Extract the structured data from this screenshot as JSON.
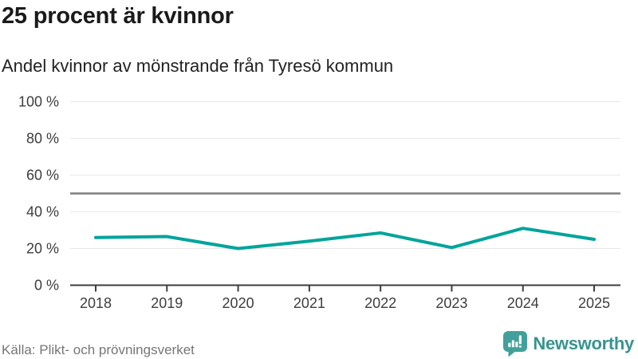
{
  "chart_data": {
    "type": "line",
    "title": "25 procent är kvinnor",
    "subtitle": "Andel kvinnor av mönstrande från Tyresö kommun",
    "x": [
      2018,
      2019,
      2020,
      2021,
      2022,
      2023,
      2024,
      2025
    ],
    "series": [
      {
        "name": "Andel kvinnor (%)",
        "values": [
          26,
          26.5,
          20,
          24,
          28.5,
          20.5,
          31,
          25
        ]
      }
    ],
    "reference_line": {
      "value": 50
    },
    "ylim": [
      0,
      100
    ],
    "yticks": [
      0,
      20,
      40,
      60,
      80,
      100
    ],
    "ytick_labels": [
      "0 %",
      "20 %",
      "40 %",
      "60 %",
      "80 %",
      "100 %"
    ],
    "grid": true,
    "legend": false
  },
  "footer": {
    "source": "Källa: Plikt- och prövningsverket",
    "brand": "Newsworthy"
  },
  "icons": {
    "brand_icon": "bar-chart-speech-bubble"
  },
  "colors": {
    "background": "#ffffff",
    "title": "#1a1a1a",
    "subtitle": "#222222",
    "line": "#00a49a",
    "reference_line": "#7f7f7f",
    "gridline": "#e7e7e7",
    "axis": "#3d3d3d",
    "tick_label": "#3d3d3d",
    "source_text": "#767676",
    "brand_teal": "#38948f",
    "brand_icon_teal": "#42a09a"
  }
}
